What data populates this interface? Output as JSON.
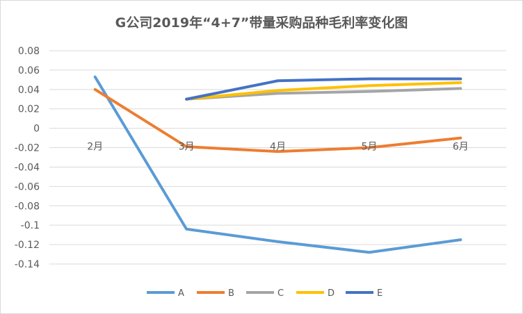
{
  "chart_data": {
    "type": "line",
    "title": "G公司2019年“4+7”带量采购品种毛利率变化图",
    "xlabel": "",
    "ylabel": "",
    "categories": [
      "2月",
      "3月",
      "4月",
      "5月",
      "6月"
    ],
    "ylim": [
      -0.14,
      0.08
    ],
    "yticks": [
      "0.08",
      "0.06",
      "0.04",
      "0.02",
      "0",
      "-0.02",
      "-0.04",
      "-0.06",
      "-0.08",
      "-0.1",
      "-0.12",
      "-0.14"
    ],
    "ytick_values": [
      0.08,
      0.06,
      0.04,
      0.02,
      0,
      -0.02,
      -0.04,
      -0.06,
      -0.08,
      -0.1,
      -0.12,
      -0.14
    ],
    "grid": true,
    "legend_position": "bottom",
    "series": [
      {
        "name": "A",
        "color": "#5b9bd5",
        "values": [
          0.053,
          -0.104,
          -0.117,
          -0.128,
          -0.115
        ]
      },
      {
        "name": "B",
        "color": "#ed7d31",
        "values": [
          0.04,
          -0.019,
          -0.024,
          -0.02,
          -0.01
        ]
      },
      {
        "name": "C",
        "color": "#a5a5a5",
        "values": [
          null,
          0.03,
          0.036,
          0.038,
          0.041
        ]
      },
      {
        "name": "D",
        "color": "#ffc000",
        "values": [
          null,
          0.03,
          0.039,
          0.044,
          0.047
        ]
      },
      {
        "name": "E",
        "color": "#4472c4",
        "values": [
          null,
          0.03,
          0.049,
          0.051,
          0.051
        ]
      }
    ]
  }
}
